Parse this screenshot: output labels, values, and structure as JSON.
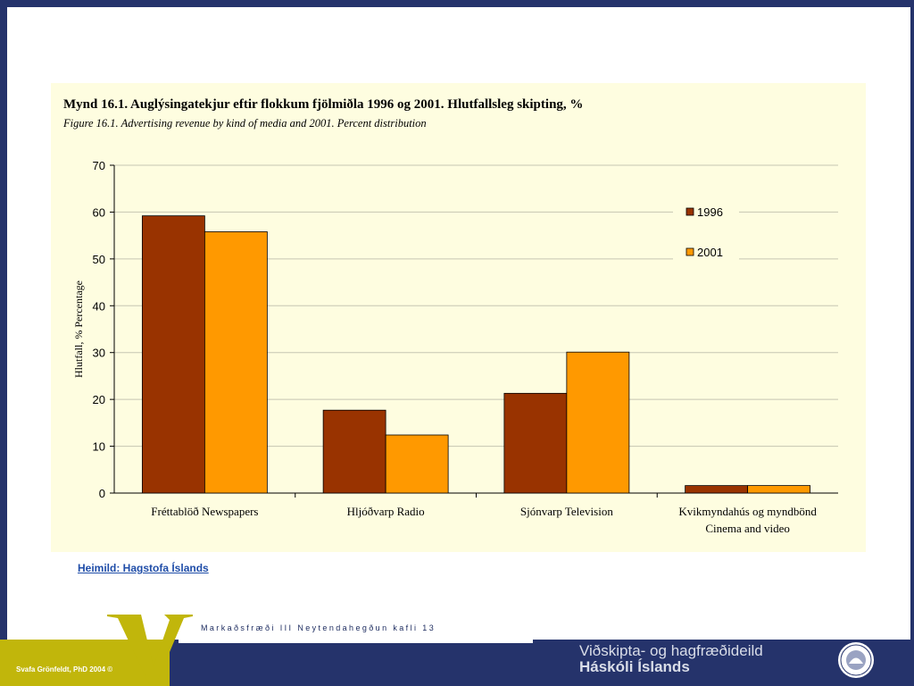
{
  "chart_data": {
    "type": "bar",
    "title": "Mynd 16.1. Auglýsingatekjur eftir flokkum fjölmiðla 1996 og 2001. Hlutfallsleg skipting, %",
    "subtitle": "Figure 16.1. Advertising revenue by kind of media and 2001. Percent distribution",
    "ylabel": "Hlutfall, %  Percentage",
    "xlabel": "",
    "ylim": [
      0,
      70
    ],
    "yticks": [
      0,
      10,
      20,
      30,
      40,
      50,
      60,
      70
    ],
    "grid": true,
    "legend": "top-right",
    "categories": [
      [
        "Fréttablöð  Newspapers"
      ],
      [
        "Hljóðvarp  Radio"
      ],
      [
        "Sjónvarp  Television"
      ],
      [
        "Kvikmyndahús og myndbönd",
        "Cinema and video"
      ]
    ],
    "series": [
      {
        "name": "1996",
        "color": "#993300",
        "values": [
          59.2,
          17.7,
          21.3,
          1.6
        ]
      },
      {
        "name": "2001",
        "color": "#ff9900",
        "values": [
          55.8,
          12.4,
          30.1,
          1.6
        ]
      }
    ]
  },
  "source": {
    "label": "Heimild: Hagstofa Íslands"
  },
  "footer": {
    "course": "Markaðsfræði III Neytendahegðun kafli 13",
    "copyright": "Svafa Grönfeldt, PhD 2004 ©",
    "dept_line1": "Viðskipta- og hagfræðideild",
    "dept_line2": "Háskóli Íslands",
    "logo_icon": "v-letter-logo",
    "seal_icon": "university-seal-icon"
  }
}
